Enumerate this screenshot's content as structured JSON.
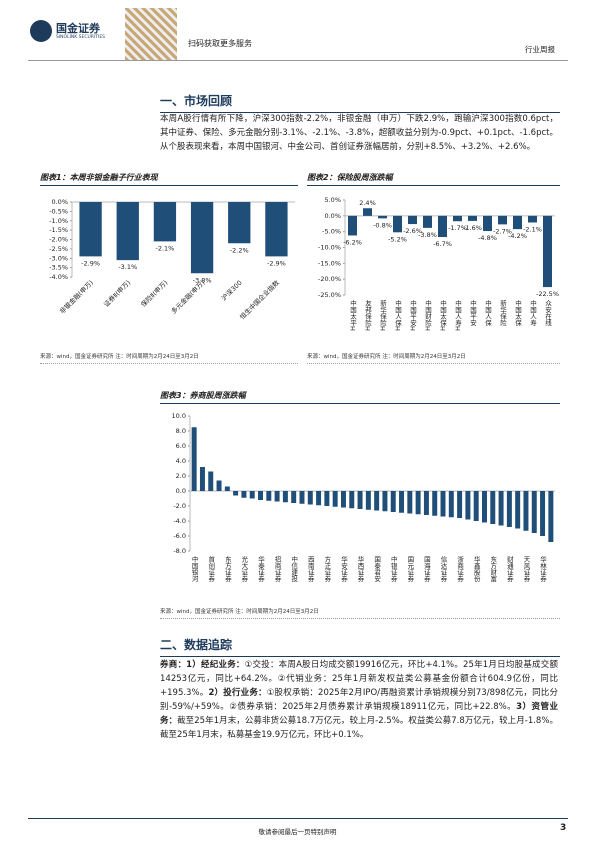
{
  "header": {
    "brand": "国金证券",
    "brand_en": "SINOLINK SECURITIES",
    "qr_caption": "扫码获取更多服务",
    "report_type": "行业周报"
  },
  "section1": {
    "title": "一、市场回顾",
    "paragraph": "本周A股行情有所下降，沪深300指数-2.2%，非银金融（申万）下跌2.9%，跑输沪深300指数0.6pct，其中证券、保险、多元金融分别-3.1%、-2.1%、-3.8%，超额收益分别为-0.9pct、+0.1pct、-1.6pct。从个股表现来看，本周中国银河、中金公司、首创证券涨幅居前，分别+8.5%、+3.2%、+2.6%。"
  },
  "chart_data": [
    {
      "type": "bar",
      "title": "图表1：本周非银金融子行业表现",
      "source": "来源：wind，国金证券研究所 注：时间周期为2月24日至3月2日",
      "color": "#1f4e79",
      "categories": [
        "非银金融(申万)",
        "证券Ⅱ(申万)",
        "保险Ⅱ(申万)",
        "多元金融(申万)",
        "沪深300",
        "恒生中国企业指数"
      ],
      "values": [
        -2.9,
        -3.1,
        -2.1,
        -3.8,
        -2.2,
        -2.9
      ],
      "value_labels": [
        "-2.9%",
        "-3.1%",
        "-2.1%",
        "-3.8%",
        "-2.2%",
        "-2.9%"
      ],
      "ylim": [
        -4.0,
        0.0
      ],
      "yticks": [
        {
          "value": 0,
          "label": "0.0%"
        },
        {
          "value": -0.5,
          "label": "-0.5%"
        },
        {
          "value": -1,
          "label": "-1.0%"
        },
        {
          "value": -1.5,
          "label": "-1.5%"
        },
        {
          "value": -2,
          "label": "-2.0%"
        },
        {
          "value": -2.5,
          "label": "-2.5%"
        },
        {
          "value": -3,
          "label": "-3.0%"
        },
        {
          "value": -3.5,
          "label": "-3.5%"
        },
        {
          "value": -4,
          "label": "-4.0%"
        }
      ]
    },
    {
      "type": "bar",
      "title": "图表2：保险股周涨跌幅",
      "source": "来源：wind，国金证券研究所 注：时间周期为2月24日至3月2日",
      "color": "#1f4e79",
      "categories": [
        "中国太平H",
        "友邦保险H",
        "新华保险H",
        "中国人保H",
        "中国平安H",
        "中国财险H",
        "中国太保H",
        "中国人寿H",
        "中国平安",
        "中国人保",
        "新华保险",
        "中国太保",
        "中国人寿",
        "众安在线"
      ],
      "values": [
        -6.2,
        2.4,
        -0.8,
        -5.2,
        -2.6,
        -3.8,
        -6.7,
        -1.7,
        -1.6,
        -4.8,
        -2.7,
        -4.2,
        -2.1,
        -22.5
      ],
      "value_labels": [
        "-6.2%",
        "2.4%",
        "-0.8%",
        "-5.2%",
        "-2.6%",
        "-3.8%",
        "-6.7%",
        "-1.7%",
        "-1.6%",
        "-4.8%",
        "-2.7%",
        "-4.2%",
        "-2.1%",
        "-22.5%"
      ],
      "ylim": [
        -25,
        5
      ],
      "yticks": [
        {
          "value": 5,
          "label": "5.0%"
        },
        {
          "value": 0,
          "label": "0.0%"
        },
        {
          "value": -5,
          "label": "-5.0%"
        },
        {
          "value": -10,
          "label": "-10.0%"
        },
        {
          "value": -15,
          "label": "-15.0%"
        },
        {
          "value": -20,
          "label": "-20.0%"
        },
        {
          "value": -25,
          "label": "-25.0%"
        }
      ]
    },
    {
      "type": "bar",
      "title": "图表3：券商股周涨跌幅",
      "source": "来源：wind，国金证券研究所 注：时间周期为2月24日至3月2日",
      "color": "#1f4e79",
      "categories": [
        "中国银河",
        null,
        "首创证券",
        null,
        "东方证券",
        null,
        "光大证券",
        null,
        "华泰证券",
        null,
        "招商证券",
        null,
        "中信建投",
        null,
        "西南证券",
        null,
        "方正证券",
        null,
        "华安证券",
        null,
        "华西证券",
        null,
        "国泰君安",
        null,
        "中银证券",
        null,
        "国元证券",
        null,
        "国海证券",
        null,
        "信达证券",
        null,
        "浙商证券",
        null,
        "华鑫股份",
        null,
        "东方财富",
        null,
        "财通证券",
        null,
        "天风证券",
        null,
        "华林证券",
        null
      ],
      "values": [
        8.5,
        3.2,
        2.6,
        1.4,
        0.6,
        -0.6,
        -0.9,
        -1.0,
        -1.2,
        -1.3,
        -1.4,
        -1.5,
        -1.6,
        -1.7,
        -1.8,
        -1.9,
        -2.0,
        -2.1,
        -2.2,
        -2.3,
        -2.4,
        -2.5,
        -2.6,
        -2.7,
        -2.8,
        -2.9,
        -3.0,
        -3.1,
        -3.2,
        -3.3,
        -3.4,
        -3.5,
        -3.6,
        -3.8,
        -4.0,
        -4.2,
        -4.4,
        -4.6,
        -4.8,
        -5.0,
        -5.3,
        -5.6,
        -6.0,
        -6.8
      ],
      "ylim": [
        -8,
        10
      ],
      "yticks": [
        {
          "value": 10,
          "label": "10.0"
        },
        {
          "value": 8,
          "label": "8.0"
        },
        {
          "value": 6,
          "label": "6.0"
        },
        {
          "value": 4,
          "label": "4.0"
        },
        {
          "value": 2,
          "label": "2.0"
        },
        {
          "value": 0,
          "label": "0.0"
        },
        {
          "value": -2,
          "label": "-2.0"
        },
        {
          "value": -4,
          "label": "-4.0"
        },
        {
          "value": -6,
          "label": "-6.0"
        },
        {
          "value": -8,
          "label": "-8.0"
        }
      ]
    }
  ],
  "section2": {
    "title": "二、数据追踪",
    "runs": [
      {
        "text": "券商：1）经纪业务：",
        "bold": true
      },
      {
        "text": "①交投：本周A股日均成交额19916亿元，环比+4.1%。25年1月日均股基成交额14253亿元，同比+64.2%。②代销业务：25年1月新发权益类公募基金份额合计604.9亿份，同比+195.3%。"
      },
      {
        "text": "2）投行业务：",
        "bold": true
      },
      {
        "text": "①股权承销：2025年2月IPO/再融资累计承销规模分别73/898亿元，同比分别-59%/+59%。②债券承销：2025年2月债券累计承销规模18911亿元，同比+22.8%。"
      },
      {
        "text": "3）资管业务：",
        "bold": true
      },
      {
        "text": "截至25年1月末，公募非货公募18.7万亿元，较上月-2.5%。权益类公募7.8万亿元，较上月-1.8%。截至25年1月末，私募基金19.9万亿元，环比+0.1%。"
      }
    ]
  },
  "footer": {
    "disclaimer": "敬请参阅最后一页特别声明",
    "page": "3"
  }
}
